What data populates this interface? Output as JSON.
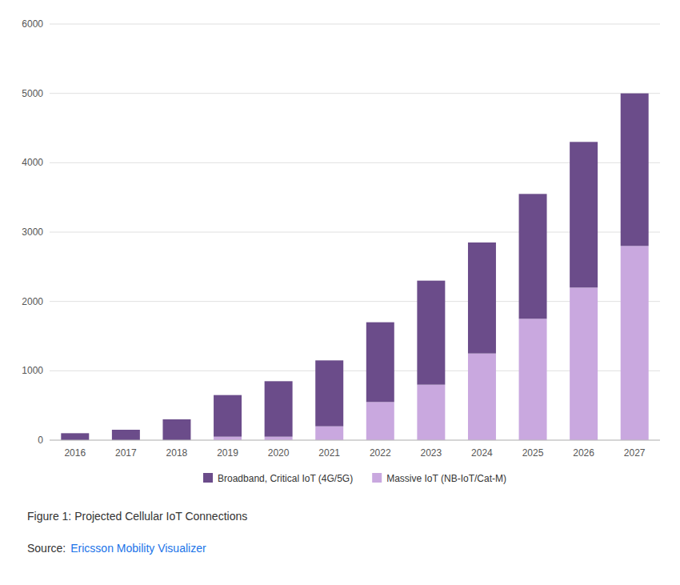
{
  "chart_data": {
    "type": "bar",
    "stacked": true,
    "title": "Figure 1: Projected Cellular IoT Connections",
    "categories": [
      "2016",
      "2017",
      "2018",
      "2019",
      "2020",
      "2021",
      "2022",
      "2023",
      "2024",
      "2025",
      "2026",
      "2027"
    ],
    "series": [
      {
        "name": "Massive IoT (NB-IoT/Cat-M)",
        "color": "#c9a8df",
        "values": [
          0,
          0,
          0,
          50,
          50,
          200,
          550,
          800,
          1250,
          1750,
          2200,
          2800
        ]
      },
      {
        "name": "Broadband, Critical IoT (4G/5G)",
        "color": "#6b4c8a",
        "values": [
          100,
          150,
          300,
          600,
          800,
          950,
          1150,
          1500,
          1600,
          1800,
          2100,
          2200
        ]
      }
    ],
    "ylim": [
      0,
      6000
    ],
    "yticks": [
      0,
      1000,
      2000,
      3000,
      4000,
      5000,
      6000
    ],
    "grid": true,
    "legend": "bottom",
    "annotations": [
      {
        "text": "Source:"
      },
      {
        "text": "Ericsson Mobility Visualizer",
        "color": "#1a73e8"
      }
    ]
  }
}
